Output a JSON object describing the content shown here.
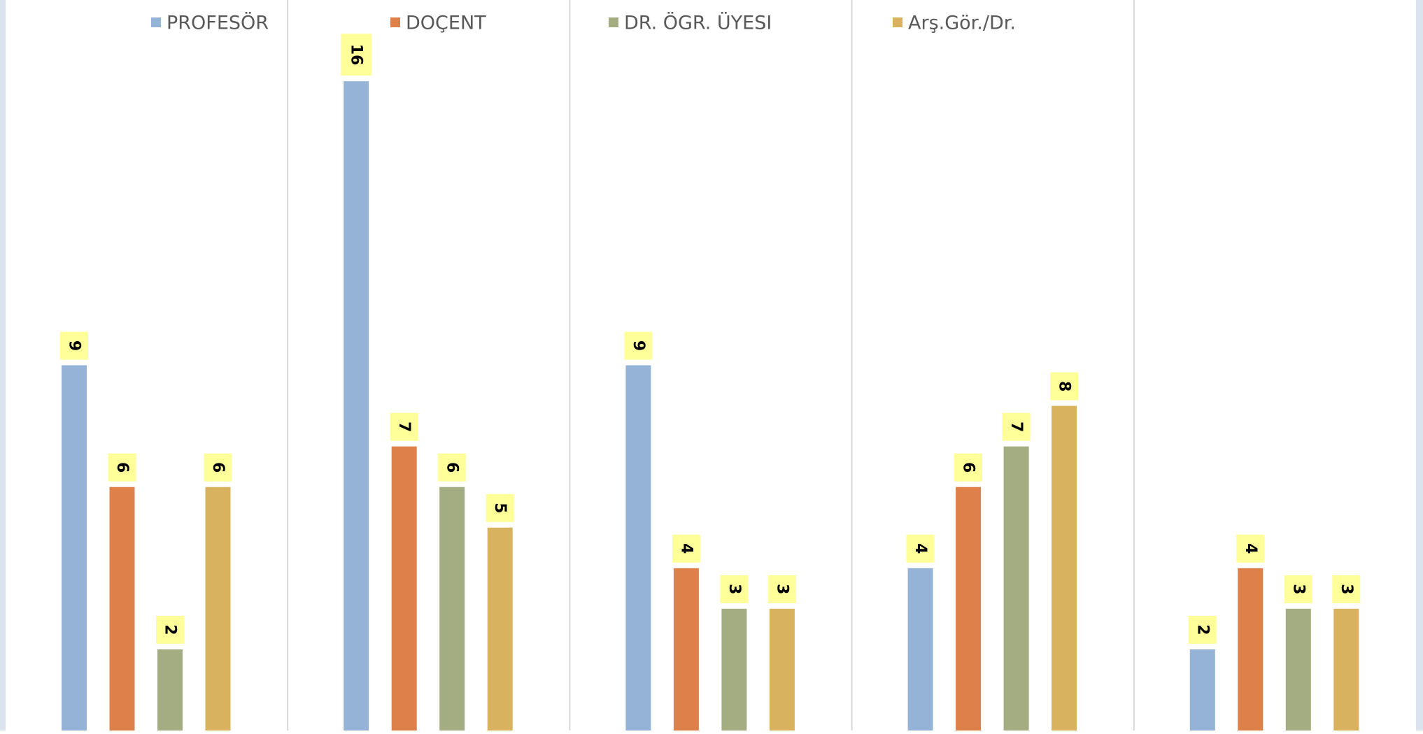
{
  "chart_data": {
    "type": "bar",
    "title": "",
    "xlabel": "",
    "ylabel": "",
    "categories": [
      "",
      "",
      "",
      "",
      ""
    ],
    "ylim": [
      0,
      16.9
    ],
    "grid": false,
    "legend_position": "top",
    "series": [
      {
        "name": "PROFESÖR",
        "color": "#95B3D7",
        "values": [
          9,
          16,
          9,
          4,
          2
        ]
      },
      {
        "name": "DOÇENT",
        "color": "#DD804A",
        "values": [
          6,
          7,
          4,
          6,
          4
        ]
      },
      {
        "name": "DR. ÖGR. ÜYESI",
        "color": "#A4AC81",
        "values": [
          2,
          6,
          3,
          7,
          3
        ]
      },
      {
        "name": "Arş.Gör./Dr.",
        "color": "#D9B25F",
        "values": [
          6,
          5,
          3,
          8,
          3
        ]
      }
    ],
    "data_label_background": "#FFFF99",
    "separator_color": "#D9D9D9",
    "page_edge_color": "#DBE3EE"
  }
}
